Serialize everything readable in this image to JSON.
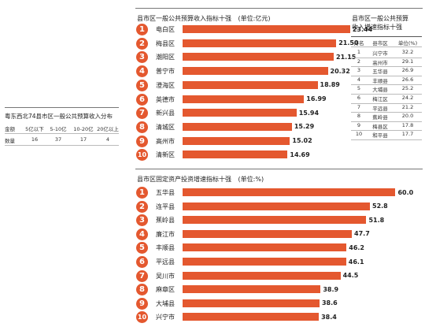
{
  "colors": {
    "accent": "#e4582f",
    "text": "#222222",
    "line": "#777777"
  },
  "top_chart": {
    "title": "县市区一般公共预算收入指标十强",
    "unit": "(单位:亿元)",
    "rank_badges": [
      "1",
      "2",
      "3",
      "4",
      "5",
      "6",
      "7",
      "8",
      "9",
      "10"
    ]
  },
  "bottom_chart": {
    "title": "县市区固定资产投资增速指标十强",
    "unit": "(单位:%)",
    "rank_badges": [
      "1",
      "2",
      "3",
      "4",
      "5",
      "6",
      "7",
      "8",
      "9",
      "10"
    ]
  },
  "growth_table": {
    "title_line1": "县市区一般公共预算",
    "title_line2": "收入增速指标十强",
    "headers": [
      "排名",
      "县市区",
      "单位(%)"
    ],
    "rows": [
      [
        "1",
        "兴宁市",
        "32.2"
      ],
      [
        "2",
        "高州市",
        "29.1"
      ],
      [
        "3",
        "五华县",
        "26.9"
      ],
      [
        "4",
        "丰顺县",
        "26.6"
      ],
      [
        "5",
        "大埔县",
        "25.2"
      ],
      [
        "6",
        "梅江区",
        "24.2"
      ],
      [
        "7",
        "平远县",
        "21.2"
      ],
      [
        "8",
        "蕉岭县",
        "20.0"
      ],
      [
        "9",
        "梅县区",
        "17.8"
      ],
      [
        "10",
        "和平县",
        "17.7"
      ]
    ]
  },
  "distribution_table": {
    "title": "粤东西北74县市区一般公共预算收入分布",
    "headers": [
      "金额",
      "5亿以下",
      "5-10亿",
      "10-20亿",
      "20亿以上"
    ],
    "rows": [
      [
        "数量",
        "16",
        "37",
        "17",
        "4"
      ]
    ]
  },
  "chart_data": [
    {
      "type": "bar",
      "title": "县市区一般公共预算收入指标十强",
      "unit": "单位:亿元",
      "categories": [
        "电白区",
        "梅县区",
        "潮阳区",
        "普宁市",
        "澄海区",
        "英德市",
        "新兴县",
        "清城区",
        "高州市",
        "清新区"
      ],
      "values": [
        23.44,
        21.5,
        21.15,
        20.32,
        18.89,
        16.99,
        15.94,
        15.29,
        15.02,
        14.69
      ],
      "value_labels": [
        "23.44",
        "21.50",
        "21.15",
        "20.32",
        "18.89",
        "16.99",
        "15.94",
        "15.29",
        "15.02",
        "14.69"
      ],
      "orientation": "horizontal",
      "xlim": [
        0,
        25
      ]
    },
    {
      "type": "bar",
      "title": "县市区固定资产投资增速指标十强",
      "unit": "单位:%",
      "categories": [
        "五华县",
        "连平县",
        "蕉岭县",
        "廉江市",
        "丰顺县",
        "平远县",
        "吴川市",
        "麻章区",
        "大埔县",
        "兴宁市"
      ],
      "values": [
        60.0,
        52.8,
        51.8,
        47.7,
        46.2,
        46.1,
        44.5,
        38.9,
        38.6,
        38.4
      ],
      "value_labels": [
        "60.0",
        "52.8",
        "51.8",
        "47.7",
        "46.2",
        "46.1",
        "44.5",
        "38.9",
        "38.6",
        "38.4"
      ],
      "orientation": "horizontal",
      "xlim": [
        0,
        65
      ]
    },
    {
      "type": "table",
      "title": "县市区一般公共预算收入增速指标十强",
      "columns": [
        "排名",
        "县市区",
        "单位(%)"
      ],
      "rows": [
        [
          1,
          "兴宁市",
          32.2
        ],
        [
          2,
          "高州市",
          29.1
        ],
        [
          3,
          "五华县",
          26.9
        ],
        [
          4,
          "丰顺县",
          26.6
        ],
        [
          5,
          "大埔县",
          25.2
        ],
        [
          6,
          "梅江区",
          24.2
        ],
        [
          7,
          "平远县",
          21.2
        ],
        [
          8,
          "蕉岭县",
          20.0
        ],
        [
          9,
          "梅县区",
          17.8
        ],
        [
          10,
          "和平县",
          17.7
        ]
      ]
    },
    {
      "type": "table",
      "title": "粤东西北74县市区一般公共预算收入分布",
      "columns": [
        "金额",
        "5亿以下",
        "5-10亿",
        "10-20亿",
        "20亿以上"
      ],
      "rows": [
        [
          "数量",
          16,
          37,
          17,
          4
        ]
      ]
    }
  ]
}
